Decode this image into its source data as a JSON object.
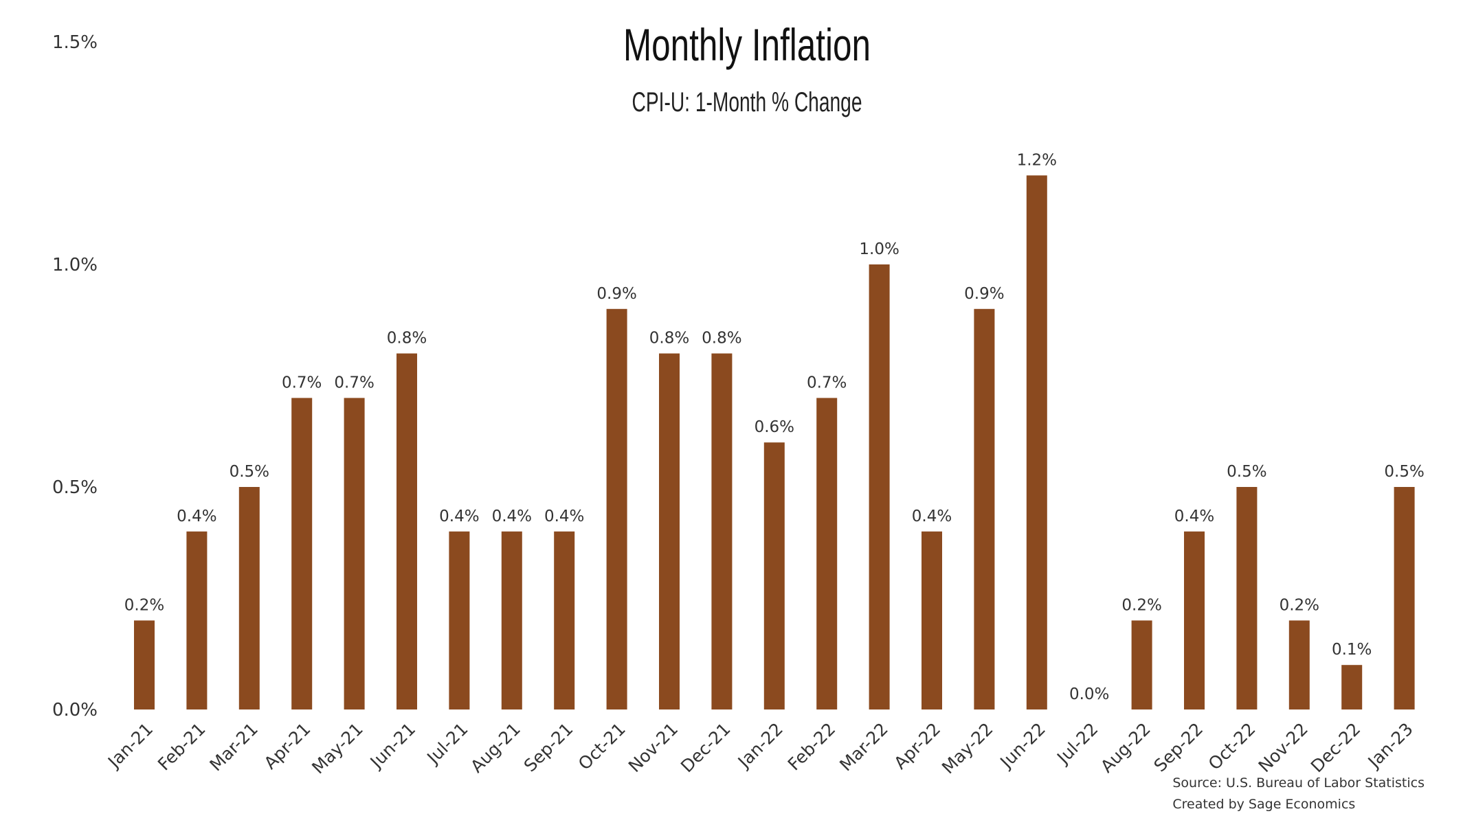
{
  "chart_data": {
    "type": "bar",
    "title": "Monthly Inflation",
    "subtitle": "CPI-U: 1-Month % Change",
    "categories": [
      "Jan-21",
      "Feb-21",
      "Mar-21",
      "Apr-21",
      "May-21",
      "Jun-21",
      "Jul-21",
      "Aug-21",
      "Sep-21",
      "Oct-21",
      "Nov-21",
      "Dec-21",
      "Jan-22",
      "Feb-22",
      "Mar-22",
      "Apr-22",
      "May-22",
      "Jun-22",
      "Jul-22",
      "Aug-22",
      "Sep-22",
      "Oct-22",
      "Nov-22",
      "Dec-22",
      "Jan-23"
    ],
    "values": [
      0.2,
      0.4,
      0.5,
      0.7,
      0.7,
      0.8,
      0.4,
      0.4,
      0.4,
      0.9,
      0.8,
      0.8,
      0.6,
      0.7,
      1.0,
      0.4,
      0.9,
      1.2,
      0.0,
      0.2,
      0.4,
      0.5,
      0.2,
      0.1,
      0.5
    ],
    "data_labels": [
      "0.2%",
      "0.4%",
      "0.5%",
      "0.7%",
      "0.7%",
      "0.8%",
      "0.4%",
      "0.4%",
      "0.4%",
      "0.9%",
      "0.8%",
      "0.8%",
      "0.6%",
      "0.7%",
      "1.0%",
      "0.4%",
      "0.9%",
      "1.2%",
      "0.0%",
      "0.2%",
      "0.4%",
      "0.5%",
      "0.2%",
      "0.1%",
      "0.5%"
    ],
    "y_ticks": [
      0.0,
      0.5,
      1.0,
      1.5
    ],
    "y_tick_labels": [
      "0.0%",
      "0.5%",
      "1.0%",
      "1.5%"
    ],
    "ylim": [
      0,
      1.5
    ],
    "xlabel": "",
    "ylabel": "",
    "grid": false,
    "legend": "none",
    "bar_color": "#8B4A1F"
  },
  "source": {
    "line1": "Source: U.S. Bureau of Labor Statistics",
    "line2": "Created by Sage Economics"
  }
}
